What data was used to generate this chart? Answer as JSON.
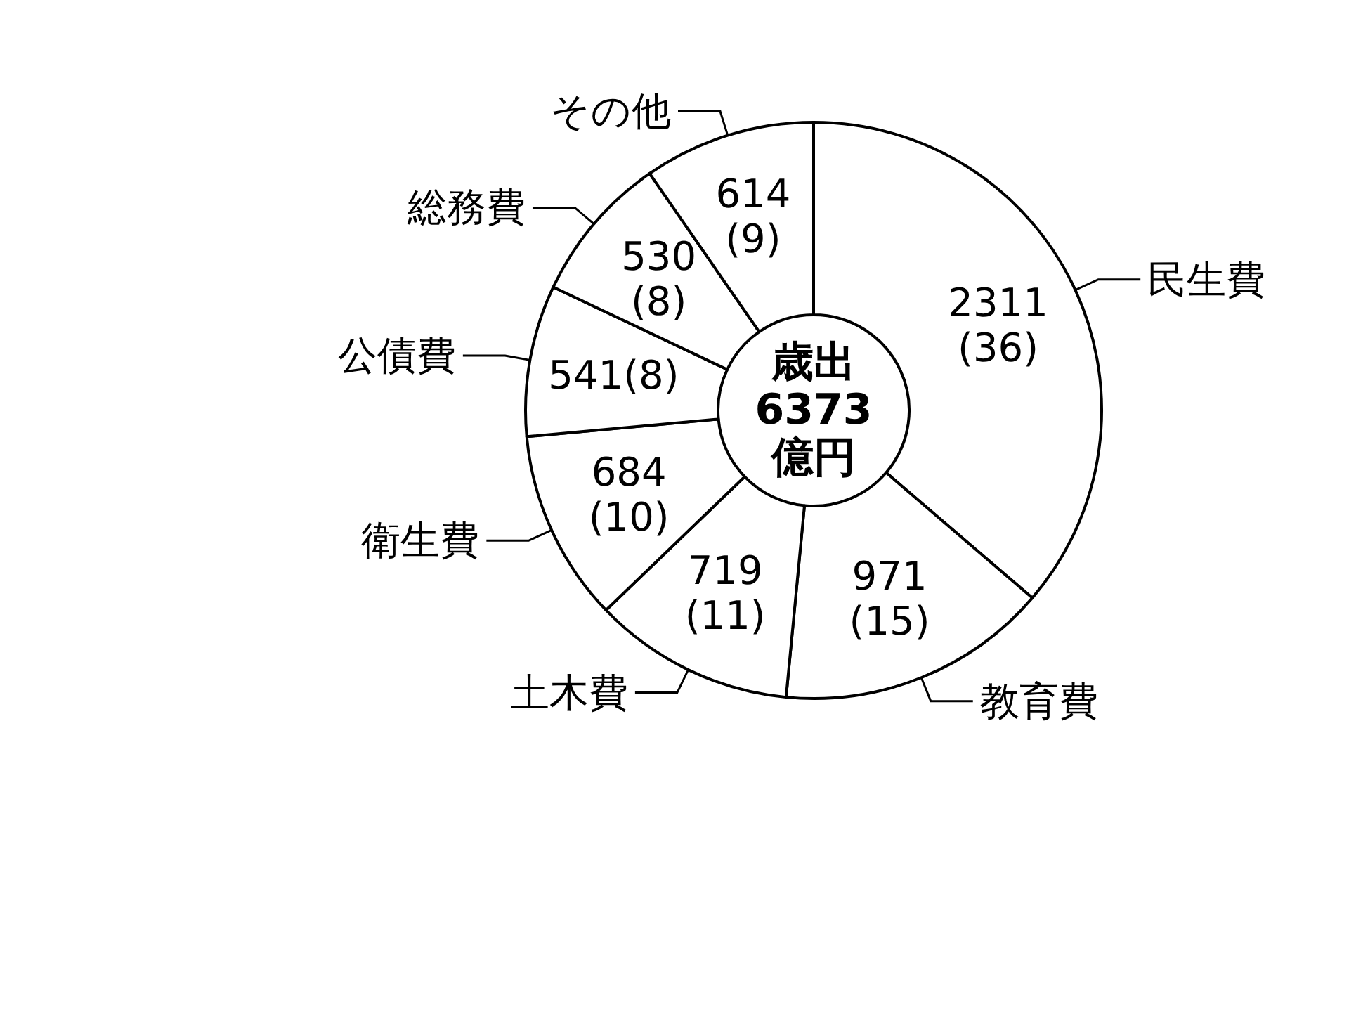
{
  "chart_data": {
    "type": "donut",
    "categories": [
      "民生費",
      "教育費",
      "土木費",
      "衛生費",
      "公債費",
      "総務費",
      "その他"
    ],
    "values": [
      2311,
      971,
      719,
      684,
      541,
      530,
      614
    ],
    "colors": [
      "#ffffff",
      "#ffffff",
      "#ffffff",
      "#ffffff",
      "#ffffff",
      "#ffffff",
      "#ffffff"
    ],
    "value_labels": [
      "2311\n(36)",
      "971\n(15)",
      "719\n(11)",
      "684\n(10)",
      "541(8)",
      "530\n(8)",
      "614\n(9)"
    ],
    "annotations": [
      "歳出\n6373\n億円"
    ],
    "legend": false
  }
}
